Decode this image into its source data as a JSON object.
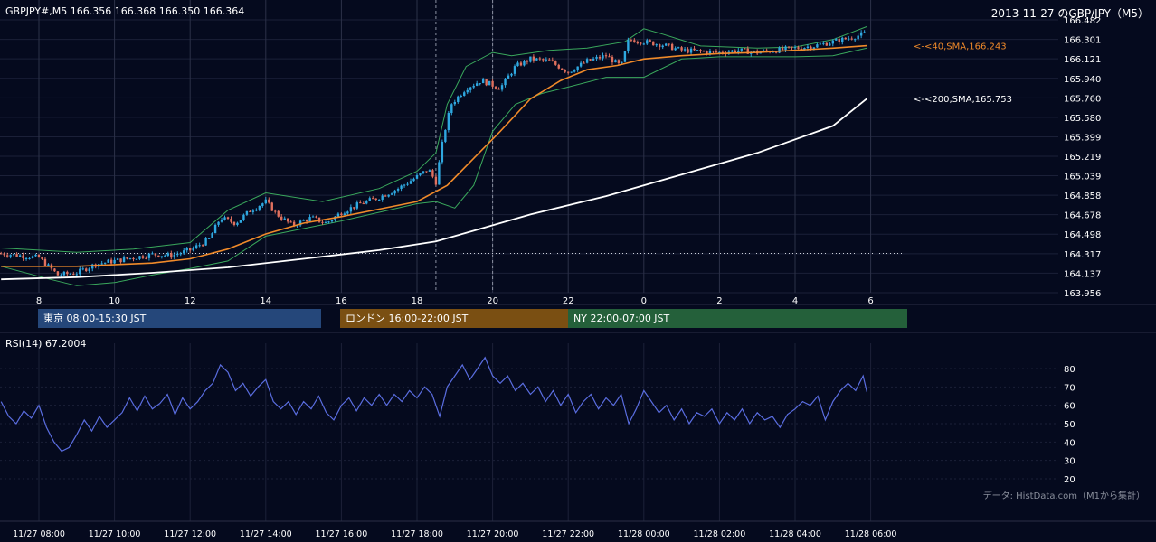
{
  "header": {
    "symbol_quote": "GBPJPY#,M5 166.356 166.368 166.350 166.364",
    "title": "2013-11-27 のGBP/JPY（M5）"
  },
  "sessions": [
    {
      "label": "東京 08:00-15:30 JST",
      "color": "#25477a"
    },
    {
      "label": "ロンドン 16:00-22:00 JST",
      "color": "#7a4f12"
    },
    {
      "label": "NY 22:00-07:00 JST",
      "color": "#24603a"
    }
  ],
  "rsi_label": "RSI(14) 67.2004",
  "credit": "データ: HistData.com（M1から集計）",
  "colors": {
    "background": "#050a1e",
    "candle_up": "#2fa8e0",
    "candle_down": "#e0705e",
    "sma40": "#f08a2a",
    "sma200": "#ffffff",
    "bollinger": "#3aa85c",
    "rsi": "#5a6de0"
  },
  "chart_data": [
    {
      "type": "candlestick",
      "symbol": "GBPJPY",
      "timeframe": "M5",
      "x_ticks": [
        "8",
        "10",
        "12",
        "14",
        "16",
        "18",
        "20",
        "22",
        "0",
        "2",
        "4",
        "6"
      ],
      "y_ticks": [
        166.482,
        166.301,
        166.121,
        165.94,
        165.76,
        165.58,
        165.399,
        165.219,
        165.039,
        164.858,
        164.678,
        164.498,
        164.317,
        164.137,
        163.956
      ],
      "ylim": [
        163.956,
        166.482
      ],
      "annotations": [
        {
          "label": "<-<40,SMA,166.243",
          "value": 166.243,
          "color": "#f08a2a"
        },
        {
          "label": "<-<200,SMA,165.753",
          "value": 165.753,
          "color": "#ffffff"
        }
      ],
      "dotted_level": 164.32,
      "close_path": [
        [
          7.0,
          164.32
        ],
        [
          7.5,
          164.3
        ],
        [
          8.0,
          164.28
        ],
        [
          8.5,
          164.12
        ],
        [
          9.0,
          164.14
        ],
        [
          9.5,
          164.22
        ],
        [
          10.0,
          164.25
        ],
        [
          10.5,
          164.28
        ],
        [
          11.0,
          164.31
        ],
        [
          11.5,
          164.3
        ],
        [
          12.0,
          164.35
        ],
        [
          12.5,
          164.45
        ],
        [
          12.8,
          164.65
        ],
        [
          13.2,
          164.6
        ],
        [
          13.6,
          164.72
        ],
        [
          14.0,
          164.8
        ],
        [
          14.3,
          164.68
        ],
        [
          14.7,
          164.58
        ],
        [
          15.2,
          164.65
        ],
        [
          15.6,
          164.6
        ],
        [
          16.0,
          164.7
        ],
        [
          16.5,
          164.78
        ],
        [
          17.0,
          164.84
        ],
        [
          17.5,
          164.92
        ],
        [
          18.0,
          165.03
        ],
        [
          18.3,
          165.1
        ],
        [
          18.5,
          164.98
        ],
        [
          18.7,
          165.4
        ],
        [
          18.9,
          165.7
        ],
        [
          19.3,
          165.85
        ],
        [
          19.7,
          165.92
        ],
        [
          20.2,
          165.85
        ],
        [
          20.6,
          166.05
        ],
        [
          21.0,
          166.12
        ],
        [
          21.5,
          166.1
        ],
        [
          22.0,
          166.0
        ],
        [
          22.5,
          166.1
        ],
        [
          23.0,
          166.15
        ],
        [
          23.4,
          166.05
        ],
        [
          23.6,
          166.3
        ],
        [
          24.0,
          166.28
        ],
        [
          24.5,
          166.25
        ],
        [
          25.0,
          166.2
        ],
        [
          25.5,
          166.19
        ],
        [
          26.0,
          166.18
        ],
        [
          26.5,
          166.2
        ],
        [
          27.0,
          166.18
        ],
        [
          27.5,
          166.2
        ],
        [
          28.0,
          166.22
        ],
        [
          28.5,
          166.24
        ],
        [
          29.0,
          166.28
        ],
        [
          29.5,
          166.32
        ],
        [
          29.9,
          166.36
        ]
      ],
      "sma40_path": [
        [
          7.0,
          164.2
        ],
        [
          9.0,
          164.2
        ],
        [
          11.0,
          164.23
        ],
        [
          12.0,
          164.27
        ],
        [
          13.0,
          164.36
        ],
        [
          14.0,
          164.5
        ],
        [
          15.0,
          164.6
        ],
        [
          16.0,
          164.66
        ],
        [
          17.0,
          164.73
        ],
        [
          18.0,
          164.8
        ],
        [
          18.8,
          164.95
        ],
        [
          19.5,
          165.2
        ],
        [
          20.2,
          165.45
        ],
        [
          21.0,
          165.75
        ],
        [
          21.8,
          165.92
        ],
        [
          22.5,
          166.02
        ],
        [
          23.3,
          166.06
        ],
        [
          24.0,
          166.12
        ],
        [
          25.0,
          166.15
        ],
        [
          26.0,
          166.17
        ],
        [
          27.0,
          166.18
        ],
        [
          28.0,
          166.2
        ],
        [
          29.0,
          166.22
        ],
        [
          29.9,
          166.243
        ]
      ],
      "sma200_path": [
        [
          7.0,
          164.08
        ],
        [
          9.0,
          164.1
        ],
        [
          11.0,
          164.14
        ],
        [
          13.0,
          164.19
        ],
        [
          15.0,
          164.27
        ],
        [
          17.0,
          164.35
        ],
        [
          18.5,
          164.43
        ],
        [
          19.5,
          164.53
        ],
        [
          21.0,
          164.68
        ],
        [
          23.0,
          164.85
        ],
        [
          25.0,
          165.05
        ],
        [
          27.0,
          165.25
        ],
        [
          29.0,
          165.5
        ],
        [
          29.9,
          165.753
        ]
      ],
      "bb_upper_path": [
        [
          7.0,
          164.37
        ],
        [
          9.0,
          164.33
        ],
        [
          10.5,
          164.36
        ],
        [
          12.0,
          164.42
        ],
        [
          13.0,
          164.72
        ],
        [
          14.0,
          164.88
        ],
        [
          15.5,
          164.8
        ],
        [
          17.0,
          164.92
        ],
        [
          18.0,
          165.08
        ],
        [
          18.5,
          165.25
        ],
        [
          18.8,
          165.7
        ],
        [
          19.3,
          166.05
        ],
        [
          20.0,
          166.18
        ],
        [
          20.5,
          166.15
        ],
        [
          21.5,
          166.2
        ],
        [
          22.5,
          166.22
        ],
        [
          23.5,
          166.28
        ],
        [
          24.0,
          166.4
        ],
        [
          24.5,
          166.35
        ],
        [
          25.5,
          166.24
        ],
        [
          27.0,
          166.22
        ],
        [
          28.0,
          166.23
        ],
        [
          29.0,
          166.3
        ],
        [
          29.9,
          166.42
        ]
      ],
      "bb_lower_path": [
        [
          7.0,
          164.2
        ],
        [
          8.3,
          164.08
        ],
        [
          9.0,
          164.02
        ],
        [
          10.0,
          164.05
        ],
        [
          11.0,
          164.12
        ],
        [
          12.0,
          164.18
        ],
        [
          13.0,
          164.25
        ],
        [
          14.0,
          164.48
        ],
        [
          15.0,
          164.55
        ],
        [
          16.0,
          164.62
        ],
        [
          17.0,
          164.7
        ],
        [
          18.0,
          164.78
        ],
        [
          18.5,
          164.8
        ],
        [
          19.0,
          164.74
        ],
        [
          19.5,
          164.95
        ],
        [
          20.0,
          165.45
        ],
        [
          20.6,
          165.7
        ],
        [
          21.3,
          165.8
        ],
        [
          22.0,
          165.86
        ],
        [
          23.0,
          165.95
        ],
        [
          24.0,
          165.95
        ],
        [
          25.0,
          166.12
        ],
        [
          26.0,
          166.14
        ],
        [
          27.0,
          166.14
        ],
        [
          28.0,
          166.14
        ],
        [
          29.0,
          166.15
        ],
        [
          29.9,
          166.22
        ]
      ]
    },
    {
      "type": "line",
      "name": "RSI(14)",
      "y_ticks": [
        80,
        70,
        60,
        50,
        40,
        30,
        20
      ],
      "ylim": [
        20,
        90
      ],
      "bottom_ticks": [
        "11/27 08:00",
        "11/27 10:00",
        "11/27 12:00",
        "11/27 14:00",
        "11/27 16:00",
        "11/27 18:00",
        "11/27 20:00",
        "11/27 22:00",
        "11/28 00:00",
        "11/28 02:00",
        "11/28 04:00",
        "11/28 06:00"
      ],
      "values": [
        [
          7.0,
          62
        ],
        [
          7.2,
          54
        ],
        [
          7.4,
          50
        ],
        [
          7.6,
          57
        ],
        [
          7.8,
          53
        ],
        [
          8.0,
          60
        ],
        [
          8.2,
          48
        ],
        [
          8.4,
          40
        ],
        [
          8.6,
          35
        ],
        [
          8.8,
          37
        ],
        [
          9.0,
          44
        ],
        [
          9.2,
          52
        ],
        [
          9.4,
          46
        ],
        [
          9.6,
          54
        ],
        [
          9.8,
          48
        ],
        [
          10.0,
          52
        ],
        [
          10.2,
          56
        ],
        [
          10.4,
          64
        ],
        [
          10.6,
          57
        ],
        [
          10.8,
          65
        ],
        [
          11.0,
          58
        ],
        [
          11.2,
          61
        ],
        [
          11.4,
          66
        ],
        [
          11.6,
          55
        ],
        [
          11.8,
          64
        ],
        [
          12.0,
          58
        ],
        [
          12.2,
          62
        ],
        [
          12.4,
          68
        ],
        [
          12.6,
          72
        ],
        [
          12.8,
          82
        ],
        [
          13.0,
          78
        ],
        [
          13.2,
          68
        ],
        [
          13.4,
          72
        ],
        [
          13.6,
          65
        ],
        [
          13.8,
          70
        ],
        [
          14.0,
          74
        ],
        [
          14.2,
          62
        ],
        [
          14.4,
          58
        ],
        [
          14.6,
          62
        ],
        [
          14.8,
          55
        ],
        [
          15.0,
          62
        ],
        [
          15.2,
          58
        ],
        [
          15.4,
          65
        ],
        [
          15.6,
          56
        ],
        [
          15.8,
          52
        ],
        [
          16.0,
          60
        ],
        [
          16.2,
          64
        ],
        [
          16.4,
          57
        ],
        [
          16.6,
          64
        ],
        [
          16.8,
          60
        ],
        [
          17.0,
          66
        ],
        [
          17.2,
          60
        ],
        [
          17.4,
          66
        ],
        [
          17.6,
          62
        ],
        [
          17.8,
          68
        ],
        [
          18.0,
          64
        ],
        [
          18.2,
          70
        ],
        [
          18.4,
          66
        ],
        [
          18.6,
          54
        ],
        [
          18.8,
          70
        ],
        [
          19.0,
          76
        ],
        [
          19.2,
          82
        ],
        [
          19.4,
          74
        ],
        [
          19.6,
          80
        ],
        [
          19.8,
          86
        ],
        [
          20.0,
          76
        ],
        [
          20.2,
          72
        ],
        [
          20.4,
          76
        ],
        [
          20.6,
          68
        ],
        [
          20.8,
          72
        ],
        [
          21.0,
          66
        ],
        [
          21.2,
          70
        ],
        [
          21.4,
          62
        ],
        [
          21.6,
          68
        ],
        [
          21.8,
          60
        ],
        [
          22.0,
          66
        ],
        [
          22.2,
          56
        ],
        [
          22.4,
          62
        ],
        [
          22.6,
          66
        ],
        [
          22.8,
          58
        ],
        [
          23.0,
          64
        ],
        [
          23.2,
          60
        ],
        [
          23.4,
          66
        ],
        [
          23.6,
          50
        ],
        [
          23.8,
          58
        ],
        [
          24.0,
          68
        ],
        [
          24.2,
          62
        ],
        [
          24.4,
          56
        ],
        [
          24.6,
          60
        ],
        [
          24.8,
          52
        ],
        [
          25.0,
          58
        ],
        [
          25.2,
          50
        ],
        [
          25.4,
          56
        ],
        [
          25.6,
          54
        ],
        [
          25.8,
          58
        ],
        [
          26.0,
          50
        ],
        [
          26.2,
          56
        ],
        [
          26.4,
          52
        ],
        [
          26.6,
          58
        ],
        [
          26.8,
          50
        ],
        [
          27.0,
          56
        ],
        [
          27.2,
          52
        ],
        [
          27.4,
          54
        ],
        [
          27.6,
          48
        ],
        [
          27.8,
          55
        ],
        [
          28.0,
          58
        ],
        [
          28.2,
          62
        ],
        [
          28.4,
          60
        ],
        [
          28.6,
          65
        ],
        [
          28.8,
          52
        ],
        [
          29.0,
          62
        ],
        [
          29.2,
          68
        ],
        [
          29.4,
          72
        ],
        [
          29.6,
          68
        ],
        [
          29.8,
          76
        ],
        [
          29.9,
          67.2
        ]
      ]
    }
  ]
}
